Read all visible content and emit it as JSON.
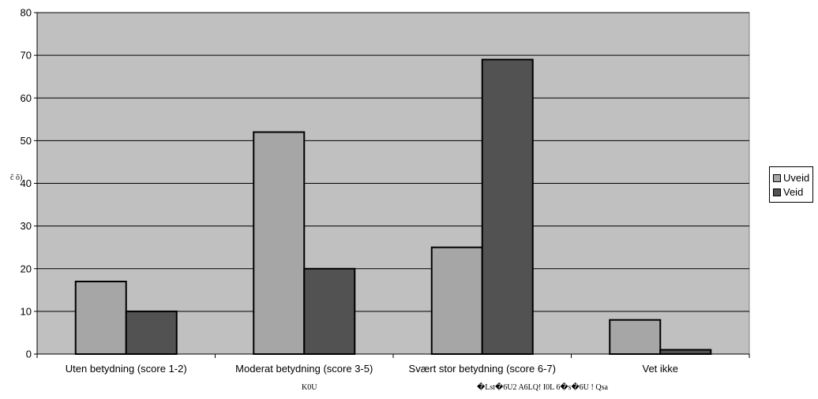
{
  "chart_data": {
    "type": "bar",
    "categories": [
      "Uten betydning (score 1-2)",
      "Moderat betydning (score 3-5)",
      "Svært stor betydning (score 6-7)",
      "Vet ikke"
    ],
    "series": [
      {
        "name": "Uveid",
        "values": [
          17,
          52,
          25,
          8
        ],
        "color": "#a6a6a6"
      },
      {
        "name": "Veid",
        "values": [
          10,
          20,
          69,
          1
        ],
        "color": "#525252"
      }
    ],
    "ylim": [
      0,
      80
    ],
    "yticks": [
      0,
      10,
      20,
      30,
      40,
      50,
      60,
      70,
      80
    ],
    "ylabel": "c̆ ŏ) ",
    "xlabel_garbled": [
      "K0U",
      "�Lst�6U2 A6LQ! I0L 6�s�6U ! Qsa"
    ],
    "grid": true,
    "plot_background": "#c0c0c0",
    "legend_position": "right"
  }
}
